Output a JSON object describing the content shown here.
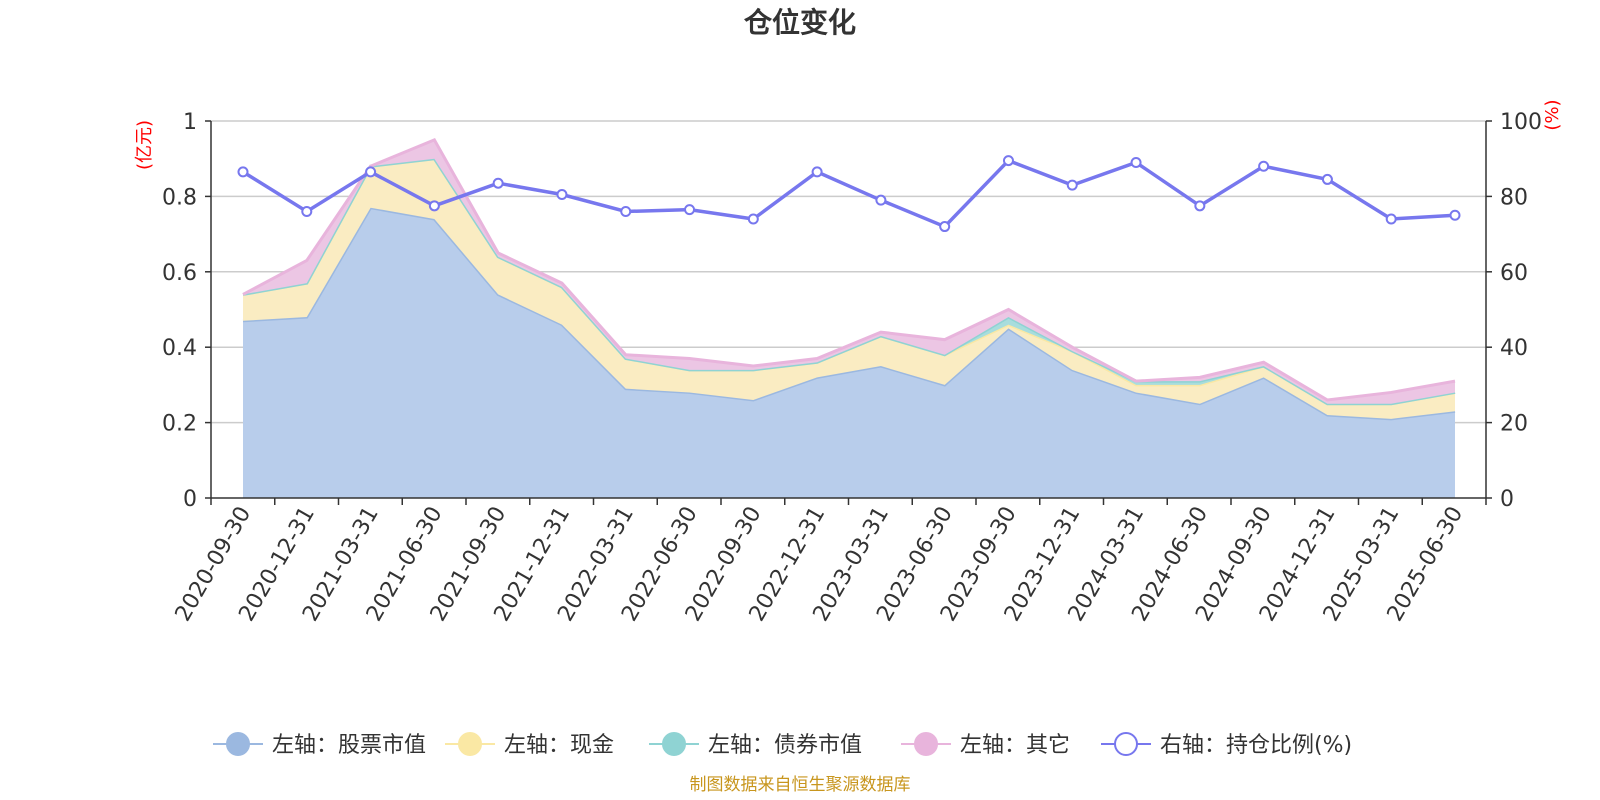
{
  "chart_data": {
    "type": "area",
    "title": "仓位变化",
    "left_axis_unit": "(亿元)",
    "right_axis_unit": "(%)",
    "categories": [
      "2020-09-30",
      "2020-12-31",
      "2021-03-31",
      "2021-06-30",
      "2021-09-30",
      "2021-12-31",
      "2022-03-31",
      "2022-06-30",
      "2022-09-30",
      "2022-12-31",
      "2023-03-31",
      "2023-06-30",
      "2023-09-30",
      "2023-12-31",
      "2024-03-31",
      "2024-06-30",
      "2024-09-30",
      "2024-12-31",
      "2025-03-31",
      "2025-06-30"
    ],
    "left_ylim": [
      0,
      1
    ],
    "left_yticks": [
      "0",
      "0.2",
      "0.4",
      "0.6",
      "0.8",
      "1"
    ],
    "right_ylim": [
      0,
      100
    ],
    "right_yticks": [
      "0",
      "20",
      "40",
      "60",
      "80",
      "100"
    ],
    "grid": true,
    "legend_position": "bottom",
    "stacked_series": [
      {
        "name": "左轴：股票市值",
        "color": "#9bb8e0",
        "fill": "#b8cdeb",
        "values": [
          0.47,
          0.48,
          0.77,
          0.74,
          0.54,
          0.46,
          0.29,
          0.28,
          0.26,
          0.32,
          0.35,
          0.3,
          0.45,
          0.34,
          0.28,
          0.25,
          0.32,
          0.22,
          0.21,
          0.23
        ]
      },
      {
        "name": "左轴：现金",
        "color": "#fae8a4",
        "fill": "#faecc2",
        "values": [
          0.07,
          0.09,
          0.11,
          0.16,
          0.1,
          0.1,
          0.08,
          0.06,
          0.08,
          0.04,
          0.08,
          0.08,
          0.01,
          0.05,
          0.02,
          0.05,
          0.03,
          0.03,
          0.04,
          0.05
        ]
      },
      {
        "name": "左轴：债券市值",
        "color": "#8fd3d3",
        "fill": "#a8dddd",
        "values": [
          0,
          0,
          0,
          0,
          0,
          0,
          0,
          0,
          0,
          0,
          0,
          0,
          0.02,
          0,
          0.01,
          0.01,
          0,
          0,
          0,
          0
        ]
      },
      {
        "name": "左轴：其它",
        "color": "#e8b4dc",
        "fill": "#ecc6e4",
        "values": [
          0.0,
          0.06,
          0.0,
          0.05,
          0.01,
          0.01,
          0.01,
          0.03,
          0.01,
          0.01,
          0.01,
          0.04,
          0.02,
          0.01,
          0.0,
          0.01,
          0.01,
          0.01,
          0.03,
          0.03
        ]
      }
    ],
    "line_series": {
      "name": "右轴：持仓比例(%)",
      "color": "#7777ee",
      "values": [
        86.5,
        76,
        86.5,
        77.5,
        83.5,
        80.5,
        76,
        76.5,
        74,
        86.5,
        79,
        72,
        89.5,
        83,
        89,
        77.5,
        88,
        84.5,
        74,
        75
      ]
    },
    "source_note": "制图数据来自恒生聚源数据库"
  }
}
